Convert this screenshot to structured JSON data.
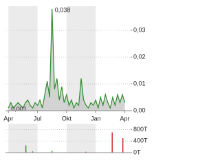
{
  "chart_data": [
    {
      "type": "area",
      "color": "#2e8b2e",
      "fill": "#c8c8c8",
      "band_color": "#ebebeb",
      "x": [
        0,
        0.25,
        0.5,
        0.75,
        1,
        1.25,
        1.5,
        1.75,
        2,
        2.25,
        2.5,
        2.75,
        3,
        3.25,
        3.5,
        3.75,
        4,
        4.25,
        4.5,
        4.75,
        5,
        5.25,
        5.5,
        5.75,
        6,
        6.25,
        6.5,
        6.75,
        7,
        7.25,
        7.5,
        7.75,
        8,
        8.25,
        8.5,
        8.75,
        9,
        9.25,
        9.5,
        9.75,
        10,
        10.25,
        10.5,
        10.75,
        11,
        11.25,
        11.5,
        11.75,
        12
      ],
      "values": [
        0.001,
        0.003,
        0.001,
        0.002,
        0.003,
        0.002,
        0.001,
        0.003,
        0.004,
        0.002,
        0.001,
        0.003,
        0.002,
        0.004,
        0.001,
        0.006,
        0.011,
        0.005,
        0.038,
        0.008,
        0.012,
        0.004,
        0.009,
        0.003,
        0.006,
        0.002,
        0.004,
        0.001,
        0.003,
        0.002,
        0.012,
        0.004,
        0.002,
        0.001,
        0.003,
        0.002,
        0.004,
        0.001,
        0.005,
        0.002,
        0.006,
        0.003,
        0.001,
        0.005,
        0.002,
        0.006,
        0.003,
        0.006,
        0.003
      ],
      "xlim": [
        -0.3,
        12.6
      ],
      "xticks": [
        {
          "value": 0,
          "label": "Apr"
        },
        {
          "value": 3,
          "label": "Jul"
        },
        {
          "value": 6,
          "label": "Okt"
        },
        {
          "value": 9,
          "label": "Jan"
        },
        {
          "value": 12,
          "label": "Apr"
        }
      ],
      "ylim": [
        0,
        0.039
      ],
      "yticks": [
        {
          "value": 0,
          "label": "0,00"
        },
        {
          "value": 0.01,
          "label": "0,01"
        },
        {
          "value": 0.02,
          "label": "0,02"
        },
        {
          "value": 0.03,
          "label": "0,03"
        }
      ],
      "grid": true,
      "annotations": [
        {
          "label": "0,038",
          "x": 4.5,
          "value": 0.038
        },
        {
          "label": "0,001",
          "x": 0,
          "value": 0.001
        }
      ]
    },
    {
      "type": "bar",
      "band_color": "#ebebeb",
      "x": [
        1.8,
        2.5,
        4.5,
        8.0,
        10.7,
        11.8
      ],
      "values": [
        250000,
        40000,
        60000,
        30000,
        700000,
        500000
      ],
      "colors": [
        "#2e8b2e",
        "#2e8b2e",
        "#2e8b2e",
        "#cc2222",
        "#cc2222",
        "#cc2222"
      ],
      "xlim": [
        -0.3,
        12.6
      ],
      "ylim": [
        0,
        1000000
      ],
      "yticks": [
        {
          "value": 0,
          "label": "0T"
        },
        {
          "value": 400000,
          "label": "400T"
        },
        {
          "value": 800000,
          "label": "800T"
        }
      ],
      "grid": true
    }
  ]
}
